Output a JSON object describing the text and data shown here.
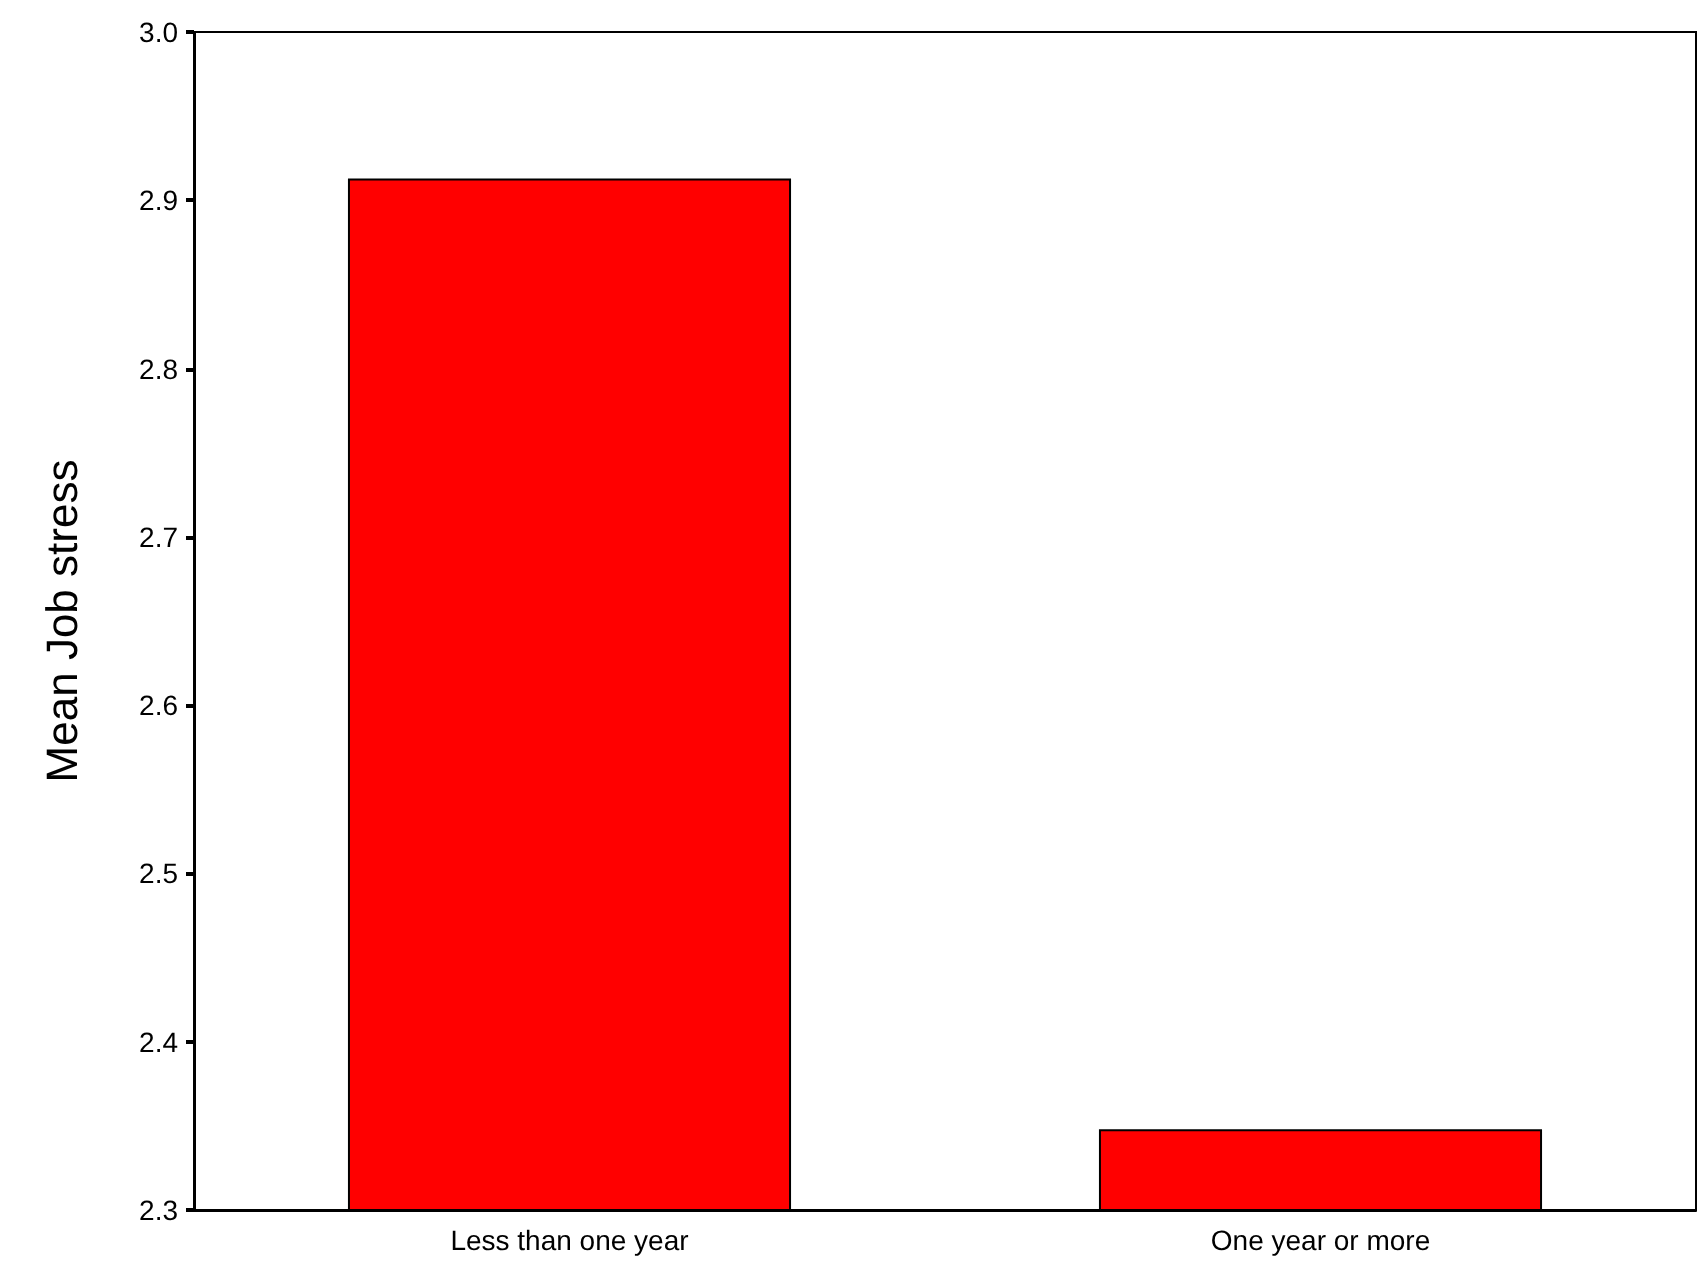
{
  "chart_data": {
    "type": "bar",
    "ylabel": "Mean Job stress",
    "categories": [
      "Less than one year",
      "One year or more"
    ],
    "values": [
      2.913,
      2.348
    ],
    "color": "#ff0000",
    "ylim": [
      2.3,
      3.0
    ],
    "yticks": [
      2.3,
      2.4,
      2.5,
      2.6,
      2.7,
      2.8,
      2.9,
      {
        "value": 3,
        "label": "3.0"
      }
    ],
    "grid": false
  }
}
